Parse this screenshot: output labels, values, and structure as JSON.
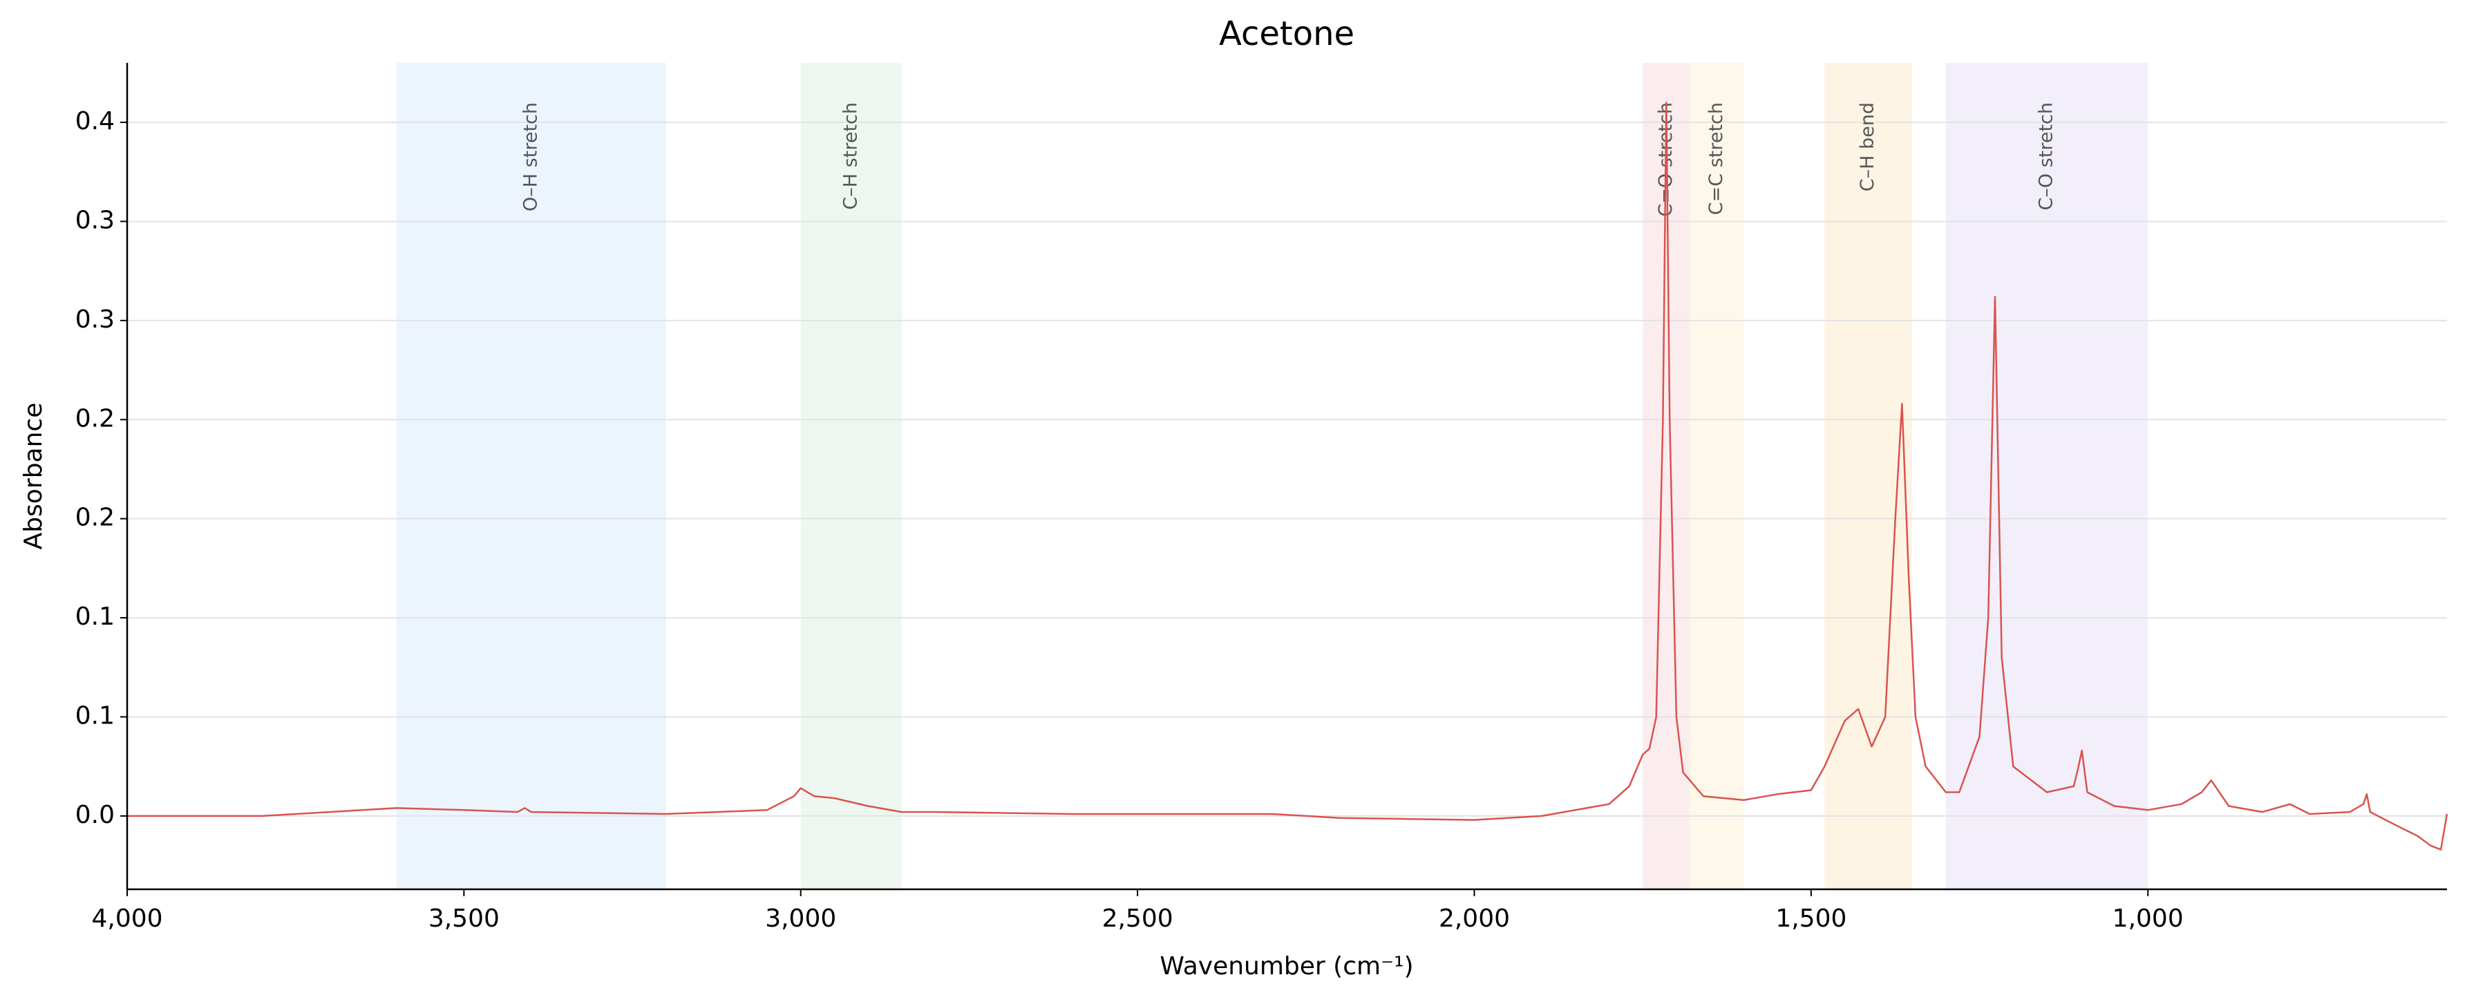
{
  "chart_data": {
    "type": "line",
    "title": "Acetone",
    "x_label": "Wavenumber (cm⁻¹)",
    "y_label": "Absorbance",
    "x": [
      4000,
      3800,
      3600,
      3500,
      3420,
      3410,
      3400,
      3200,
      3050,
      3010,
      3000,
      2980,
      2950,
      2900,
      2850,
      2800,
      2600,
      2300,
      2200,
      2000,
      1900,
      1800,
      1770,
      1750,
      1740,
      1730,
      1720,
      1715,
      1710,
      1700,
      1690,
      1680,
      1660,
      1600,
      1550,
      1500,
      1480,
      1450,
      1430,
      1410,
      1390,
      1375,
      1365,
      1355,
      1345,
      1330,
      1300,
      1280,
      1250,
      1237,
      1227,
      1217,
      1200,
      1150,
      1110,
      1103,
      1098,
      1090,
      1050,
      1000,
      950,
      920,
      906,
      880,
      830,
      789,
      760,
      700,
      680,
      675,
      670,
      630,
      600,
      580,
      565,
      556
    ],
    "values": [
      0.0,
      0.0,
      0.004,
      0.003,
      0.002,
      0.004,
      0.002,
      0.001,
      0.003,
      0.01,
      0.014,
      0.01,
      0.009,
      0.005,
      0.002,
      0.002,
      0.001,
      0.001,
      -0.001,
      -0.002,
      0.0,
      0.006,
      0.015,
      0.031,
      0.034,
      0.05,
      0.2,
      0.36,
      0.2,
      0.05,
      0.022,
      0.018,
      0.01,
      0.008,
      0.011,
      0.013,
      0.025,
      0.048,
      0.054,
      0.035,
      0.05,
      0.15,
      0.208,
      0.12,
      0.05,
      0.025,
      0.012,
      0.012,
      0.04,
      0.1,
      0.262,
      0.08,
      0.025,
      0.012,
      0.015,
      0.025,
      0.033,
      0.012,
      0.005,
      0.003,
      0.006,
      0.012,
      0.018,
      0.005,
      0.002,
      0.006,
      0.001,
      0.002,
      0.006,
      0.011,
      0.002,
      -0.005,
      -0.01,
      -0.015,
      -0.017,
      0.001
    ],
    "line_color": "#d9534f",
    "bands": [
      {
        "label": "O–H stretch",
        "start": 3600,
        "end": 3200,
        "color": "#ecf4fe"
      },
      {
        "label": "C–H stretch",
        "start": 3000,
        "end": 2850,
        "color": "#edf7ef"
      },
      {
        "label": "C=O stretch",
        "start": 1750,
        "end": 1680,
        "color": "#fbecee"
      },
      {
        "label": "C=C stretch",
        "start": 1680,
        "end": 1600,
        "color": "#fef8ea"
      },
      {
        "label": "C–H bend",
        "start": 1480,
        "end": 1350,
        "color": "#fdf4e4"
      },
      {
        "label": "C–O stretch",
        "start": 1300,
        "end": 1000,
        "color": "#f2effa"
      }
    ],
    "xlim": [
      4000,
      556
    ],
    "ylim": [
      -0.037,
      0.38
    ],
    "xticks": [
      {
        "value": 4000,
        "label": "4,000"
      },
      {
        "value": 3500,
        "label": "3,500"
      },
      {
        "value": 3000,
        "label": "3,000"
      },
      {
        "value": 2500,
        "label": "2,500"
      },
      {
        "value": 2000,
        "label": "2,000"
      },
      {
        "value": 1500,
        "label": "1,500"
      },
      {
        "value": 1000,
        "label": "1,000"
      }
    ],
    "yticks": [
      {
        "value": 0,
        "label": "0.0"
      },
      {
        "value": 0.05,
        "label": "0.1"
      },
      {
        "value": 0.1,
        "label": "0.1"
      },
      {
        "value": 0.15,
        "label": "0.2"
      },
      {
        "value": 0.2,
        "label": "0.2"
      },
      {
        "value": 0.25,
        "label": "0.3"
      },
      {
        "value": 0.3,
        "label": "0.3"
      },
      {
        "value": 0.35,
        "label": "0.4"
      }
    ],
    "grid": true
  }
}
